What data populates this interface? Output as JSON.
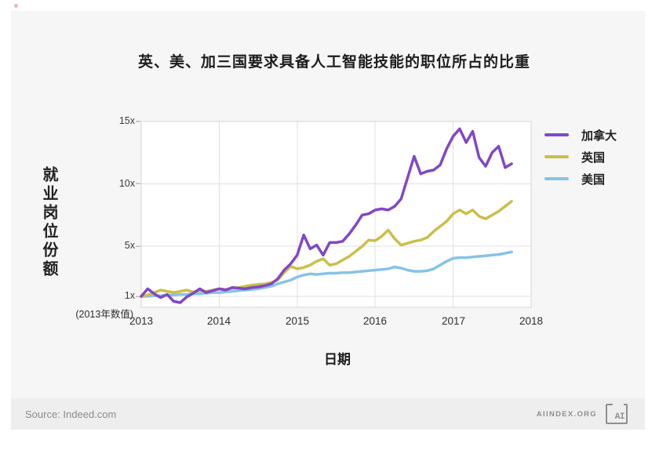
{
  "title": "英、美、加三国要求具备人工智能技能的职位所占的比重",
  "y_axis": {
    "label": "就业岗位份额",
    "baseline_note": "(2013年数值)",
    "ticks": [
      "15x",
      "10x",
      "5x",
      "1x"
    ]
  },
  "x_axis": {
    "label": "日期",
    "ticks": [
      "2013",
      "2014",
      "2015",
      "2016",
      "2017",
      "2018"
    ]
  },
  "legend": [
    {
      "label": "加拿大",
      "color": "#8247c5"
    },
    {
      "label": "英国",
      "color": "#cbbf4a"
    },
    {
      "label": "美国",
      "color": "#87c3e6"
    }
  ],
  "footer": {
    "source": "Source: Indeed.com",
    "site": "AIINDEX.ORG",
    "logo_text": "AI"
  },
  "colors": {
    "card_background": "#f6f6f6",
    "footer_background": "#eeeeee",
    "plot_background": "#ffffff",
    "grid": "#e0e0e0",
    "border": "#d4d4d4",
    "tick": "#b9b9b9"
  },
  "chart_data": {
    "type": "line",
    "title": "英、美、加三国要求具备人工智能技能的职位所占的比重",
    "xlabel": "日期",
    "ylabel": "就业岗位份额 (2013年数值)",
    "x_unit": "decimal_year_monthly",
    "x_start": 2013.0,
    "x_end": 2017.75,
    "xlim": [
      2013,
      2018
    ],
    "ylim": [
      0,
      15
    ],
    "y_tick_values": [
      1,
      5,
      10,
      15
    ],
    "x_tick_values": [
      2013,
      2014,
      2015,
      2016,
      2017,
      2018
    ],
    "grid": true,
    "legend_position": "right",
    "series": [
      {
        "name": "加拿大",
        "color": "#8247c5",
        "values": [
          1.0,
          1.6,
          1.2,
          0.9,
          1.15,
          0.6,
          0.5,
          0.95,
          1.25,
          1.6,
          1.3,
          1.45,
          1.6,
          1.5,
          1.7,
          1.65,
          1.6,
          1.7,
          1.75,
          1.85,
          2.0,
          2.4,
          3.1,
          3.6,
          4.3,
          5.9,
          4.8,
          5.1,
          4.3,
          5.3,
          5.3,
          5.4,
          6.0,
          6.7,
          7.5,
          7.6,
          7.9,
          8.0,
          7.9,
          8.2,
          8.8,
          10.5,
          12.2,
          10.8,
          11.0,
          11.1,
          11.5,
          12.8,
          13.8,
          14.4,
          13.3,
          14.2,
          12.1,
          11.4,
          12.5,
          13.0,
          11.3,
          11.6
        ]
      },
      {
        "name": "英国",
        "color": "#cbbf4a",
        "values": [
          1.0,
          1.1,
          1.3,
          1.5,
          1.4,
          1.3,
          1.4,
          1.5,
          1.35,
          1.45,
          1.4,
          1.5,
          1.6,
          1.55,
          1.65,
          1.7,
          1.8,
          1.9,
          1.95,
          2.0,
          2.1,
          2.3,
          2.9,
          3.4,
          3.2,
          3.3,
          3.5,
          3.8,
          4.0,
          3.5,
          3.6,
          3.9,
          4.2,
          4.6,
          5.0,
          5.5,
          5.45,
          5.8,
          6.3,
          5.6,
          5.1,
          5.25,
          5.4,
          5.5,
          5.7,
          6.2,
          6.6,
          7.0,
          7.6,
          7.9,
          7.6,
          7.9,
          7.4,
          7.2,
          7.5,
          7.8,
          8.2,
          8.6
        ]
      },
      {
        "name": "美国",
        "color": "#87c3e6",
        "values": [
          1.0,
          1.0,
          1.05,
          1.05,
          1.1,
          1.1,
          1.15,
          1.15,
          1.2,
          1.2,
          1.25,
          1.3,
          1.3,
          1.35,
          1.4,
          1.45,
          1.5,
          1.55,
          1.6,
          1.7,
          1.8,
          2.0,
          2.15,
          2.3,
          2.55,
          2.7,
          2.8,
          2.75,
          2.8,
          2.85,
          2.85,
          2.9,
          2.9,
          2.95,
          3.0,
          3.05,
          3.1,
          3.15,
          3.2,
          3.35,
          3.25,
          3.1,
          3.0,
          3.0,
          3.05,
          3.2,
          3.5,
          3.8,
          4.05,
          4.1,
          4.1,
          4.15,
          4.2,
          4.25,
          4.3,
          4.35,
          4.45,
          4.55
        ]
      }
    ]
  }
}
